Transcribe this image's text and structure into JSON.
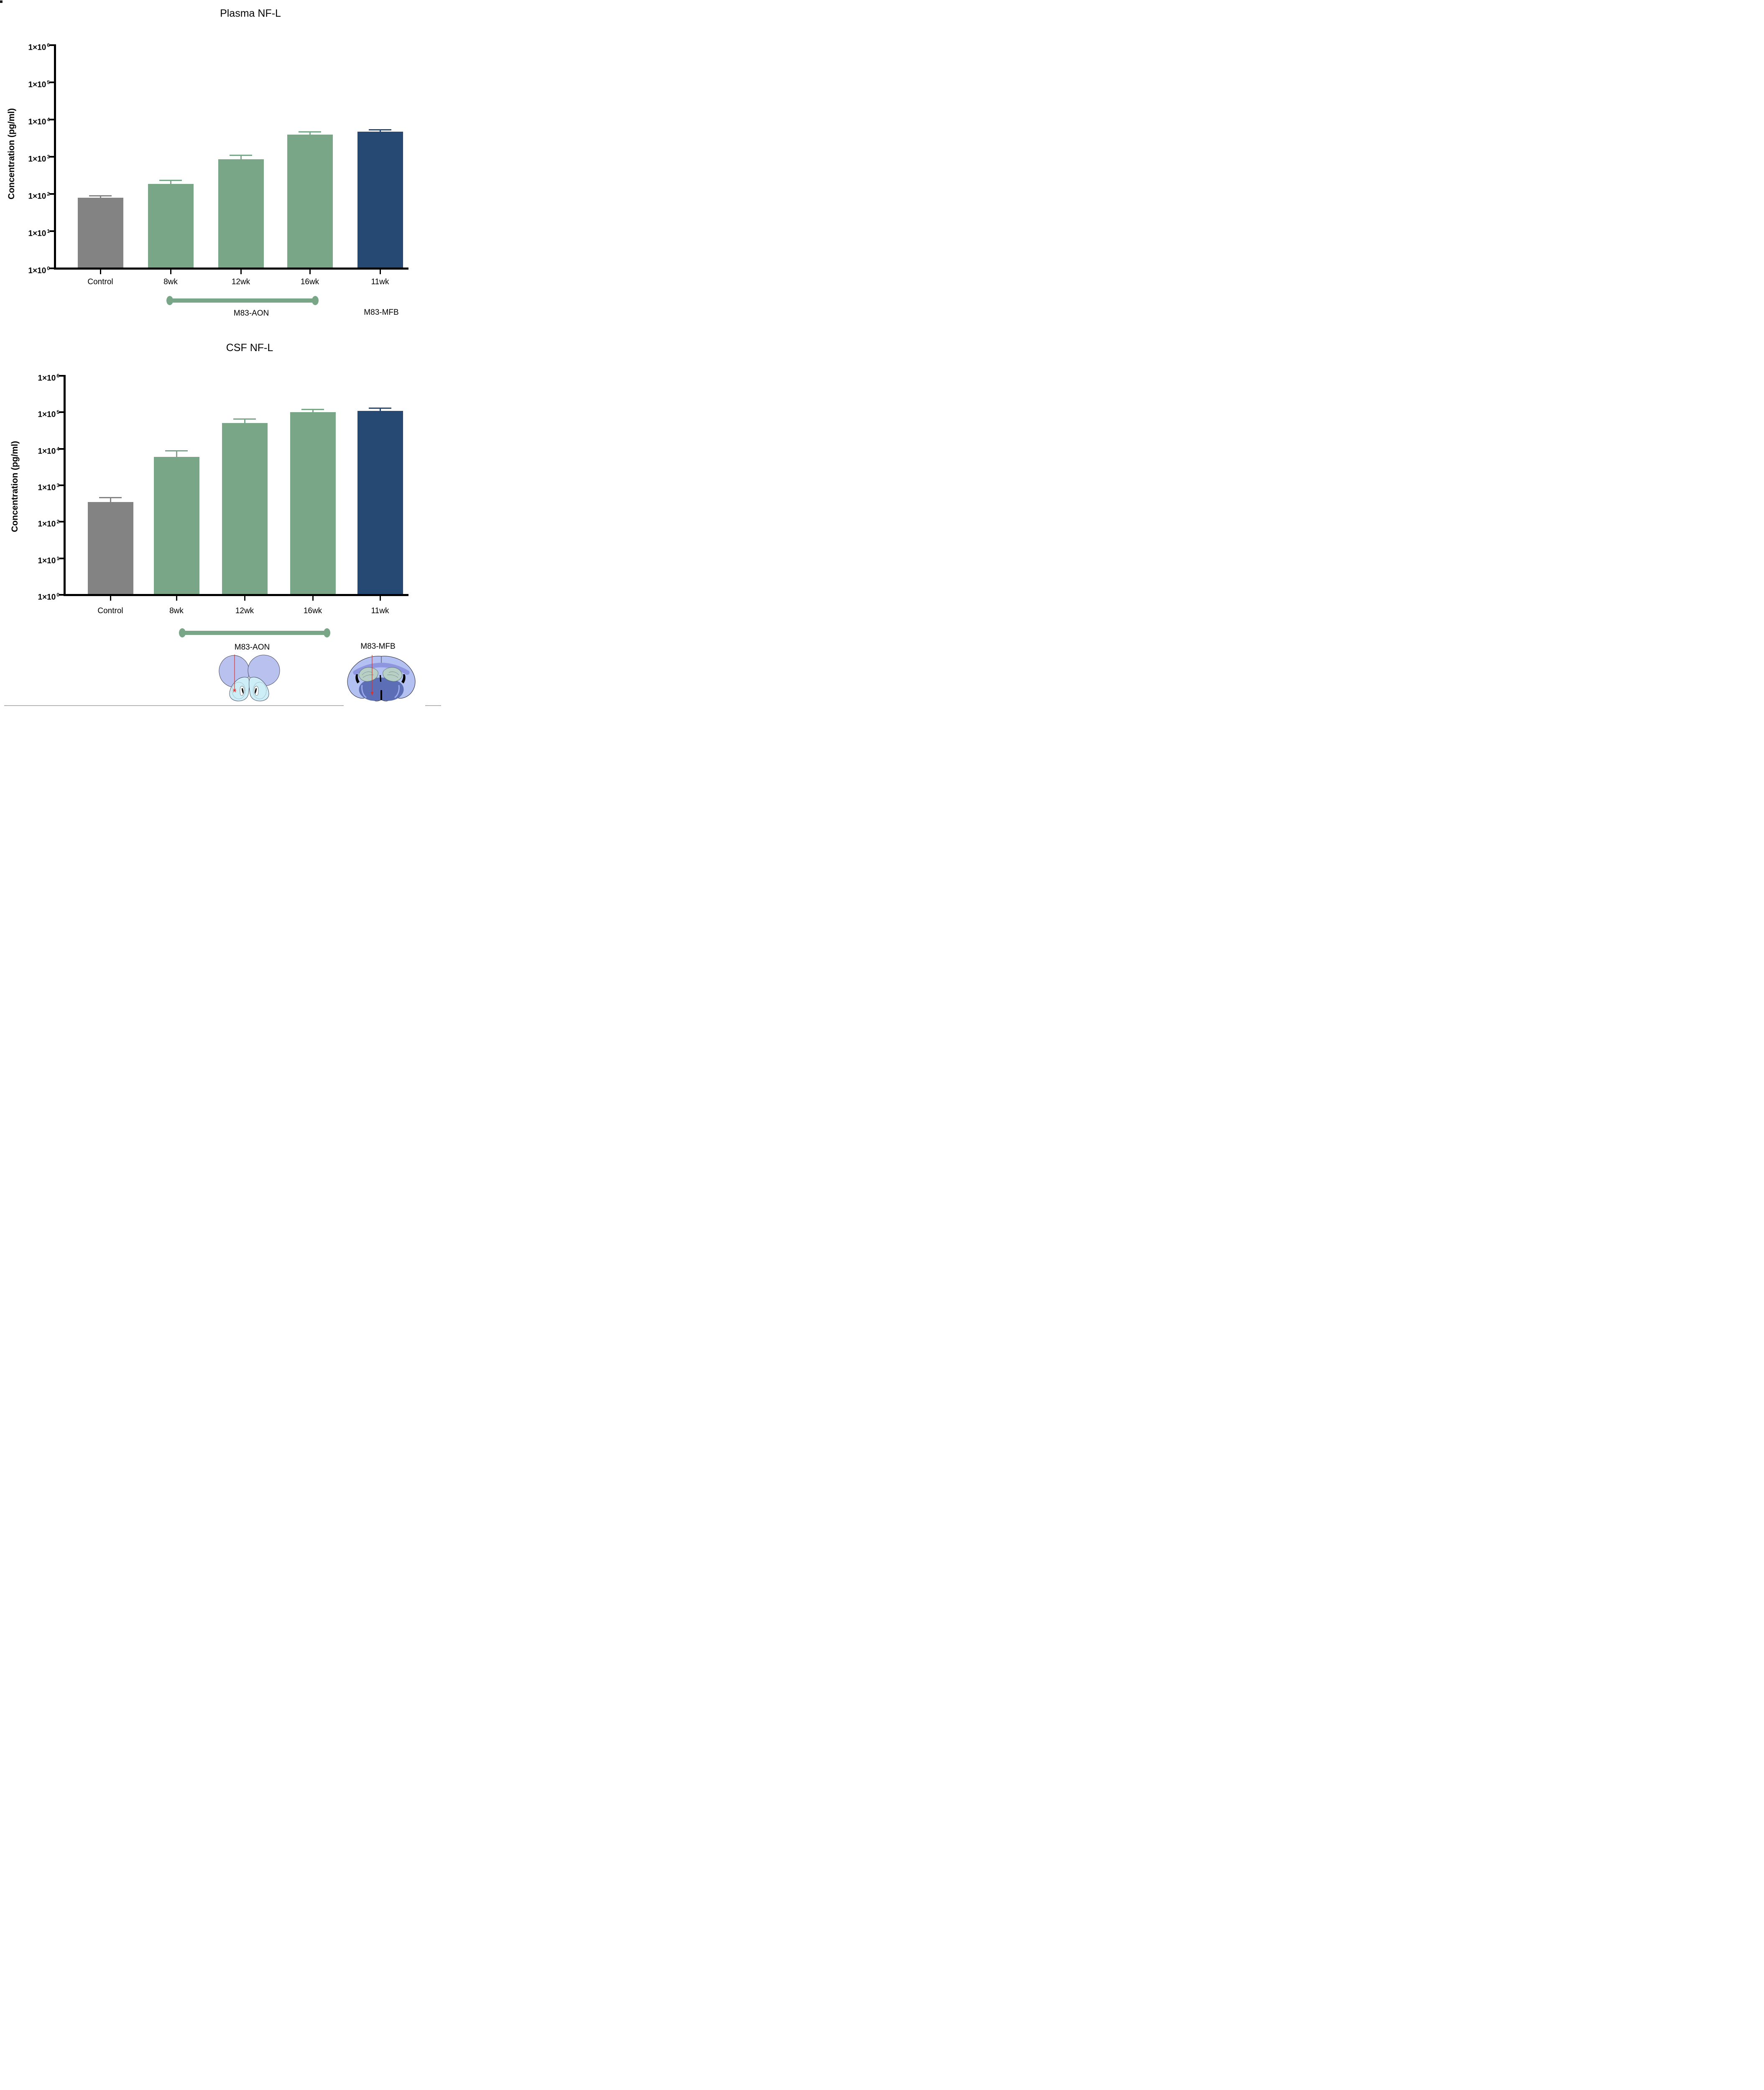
{
  "chart_data": [
    {
      "type": "bar",
      "id": "plasma",
      "title": "Plasma NF-L",
      "ylabel": "Concentration (pg/ml)",
      "xlabel": "",
      "yscale": "log10",
      "ylim": [
        1,
        1000000
      ],
      "grid": false,
      "y_tick_mantissa": "1×10",
      "y_tick_exponents": [
        6,
        5,
        4,
        3,
        2,
        1,
        0
      ],
      "categories": [
        "Control",
        "8wk",
        "12wk",
        "16wk",
        "11wk"
      ],
      "values": [
        80,
        185,
        860,
        3900,
        4700
      ],
      "error_high": [
        90,
        230,
        1100,
        4650,
        5300
      ],
      "bar_color_keys": [
        "gray",
        "green",
        "green",
        "green",
        "navy"
      ],
      "group_span": {
        "label": "M83-AON",
        "from": "8wk",
        "to": "16wk"
      },
      "side_label": {
        "label": "M83-MFB",
        "at": "11wk"
      }
    },
    {
      "type": "bar",
      "id": "csf",
      "title": "CSF NF-L",
      "ylabel": "Concentration (pg/ml)",
      "xlabel": "",
      "yscale": "log10",
      "ylim": [
        1,
        1000000
      ],
      "grid": false,
      "y_tick_mantissa": "1×10",
      "y_tick_exponents": [
        6,
        5,
        4,
        3,
        2,
        1,
        0
      ],
      "categories": [
        "Control",
        "8wk",
        "12wk",
        "16wk",
        "11wk"
      ],
      "values": [
        350,
        6000,
        51000,
        100000,
        110000
      ],
      "error_high": [
        460,
        8700,
        66000,
        120000,
        130000
      ],
      "bar_color_keys": [
        "gray",
        "green",
        "green",
        "green",
        "navy"
      ],
      "group_span": {
        "label": "M83-AON",
        "from": "8wk",
        "to": "16wk"
      },
      "side_label": {
        "label": "M83-MFB",
        "at": "11wk"
      }
    }
  ],
  "colors": {
    "green": "#78a686",
    "navy": "#254973",
    "gray": "#838383",
    "axis": "#000000",
    "red_marker": "#e03127",
    "brain_lavender": "#b9c1ee",
    "brain_cyan": "#cdeef7",
    "brain_periwinkle": "#b3c1f2",
    "brain_inner_blue": "#5c6eb5",
    "brain_hippocampus": "#b7cfc6",
    "brain_band": "#8e96e0",
    "brain_streak": "#9aa9ea"
  },
  "brain_diagrams": {
    "aon_icon": "mouse-brain-aon-injection-icon",
    "mfb_icon": "mouse-brain-coronal-mfb-injection-icon"
  }
}
